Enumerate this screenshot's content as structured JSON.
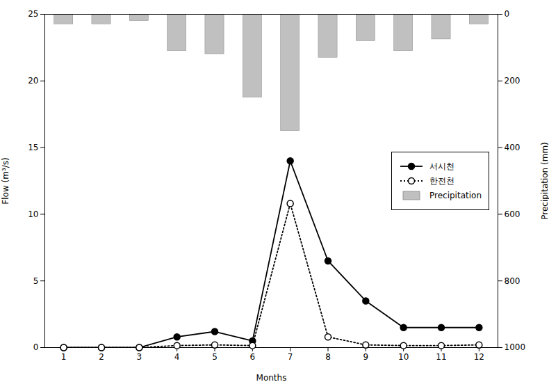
{
  "chart_data": {
    "type": "line",
    "x": [
      1,
      2,
      3,
      4,
      5,
      6,
      7,
      8,
      9,
      10,
      11,
      12
    ],
    "xlabel": "Months",
    "ylabel": "Flow (m³/s)",
    "y2label": "Precipitation (mm)",
    "xlim": [
      0.5,
      12.5
    ],
    "xticks": [
      1,
      2,
      3,
      4,
      5,
      6,
      7,
      8,
      9,
      10,
      11,
      12
    ],
    "ylim": [
      0,
      25
    ],
    "yticks": [
      0,
      5,
      10,
      15,
      20,
      25
    ],
    "y2lim": [
      1000,
      0
    ],
    "y2ticks": [
      0,
      200,
      400,
      600,
      800,
      1000
    ],
    "grid": false,
    "legend": "right",
    "series": [
      {
        "name": "서시천",
        "type": "line",
        "color": "black",
        "marker": "circle",
        "line_style": "solid",
        "values": [
          0,
          0,
          0,
          0.8,
          1.2,
          0.5,
          14.0,
          6.5,
          3.5,
          1.5,
          1.5,
          1.5
        ]
      },
      {
        "name": "한전천",
        "type": "line",
        "color": "black",
        "marker": "open_circle",
        "line_style": "dotted",
        "values": [
          0,
          0,
          0,
          0.15,
          0.2,
          0.15,
          10.8,
          0.8,
          0.2,
          0.15,
          0.15,
          0.2
        ]
      },
      {
        "name": "Precipitation",
        "type": "bar",
        "axis": "y2",
        "color": "#c0c0c0",
        "values": [
          30,
          30,
          20,
          110,
          120,
          250,
          350,
          130,
          80,
          110,
          75,
          30
        ]
      }
    ]
  }
}
